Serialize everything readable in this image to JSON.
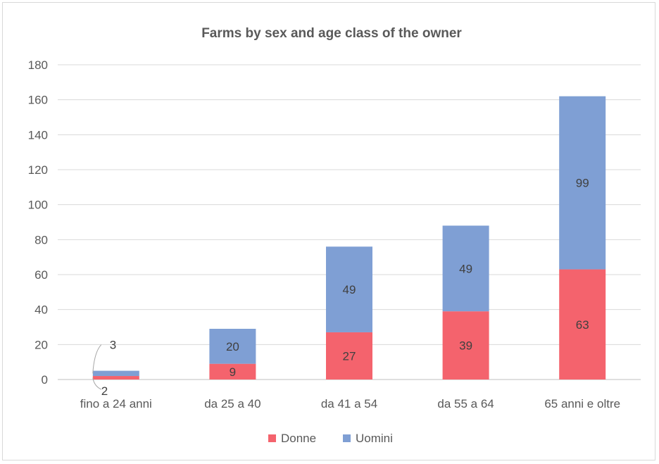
{
  "chart_data": {
    "type": "bar",
    "stacked": true,
    "title": "Farms by sex and age class of the owner",
    "categories": [
      "fino a 24 anni",
      "da 25 a 40",
      "da 41 a 54",
      "da 55 a 64",
      "65 anni e oltre"
    ],
    "series": [
      {
        "name": "Donne",
        "values": [
          2,
          9,
          27,
          39,
          63
        ],
        "color": "#f4636d"
      },
      {
        "name": "Uomini",
        "values": [
          3,
          20,
          49,
          49,
          99
        ],
        "color": "#7f9fd4"
      }
    ],
    "ylim": [
      0,
      180
    ],
    "yticks": [
      0,
      20,
      40,
      60,
      80,
      100,
      120,
      140,
      160,
      180
    ],
    "grid": true,
    "legend": "bottom"
  }
}
